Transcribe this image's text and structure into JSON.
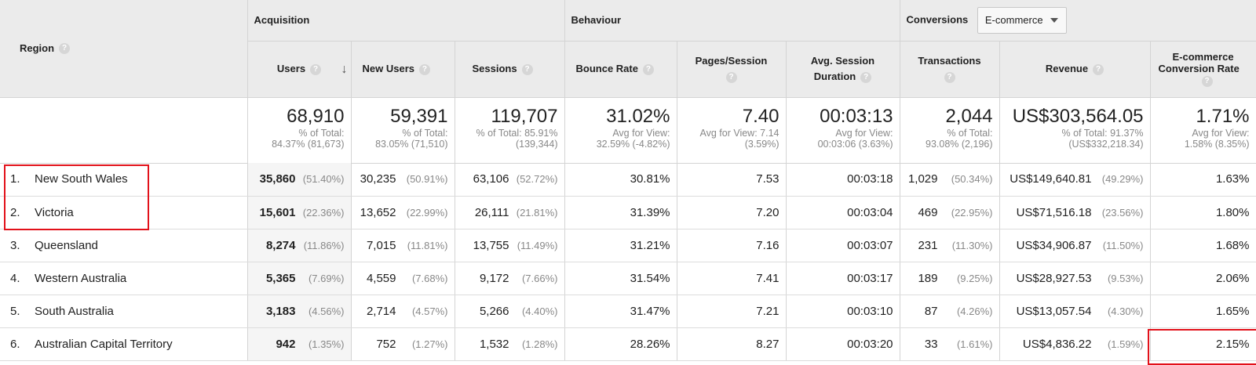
{
  "header": {
    "region_label": "Region",
    "group_acquisition": "Acquisition",
    "group_behaviour": "Behaviour",
    "group_conversions": "Conversions",
    "conversions_dropdown_value": "E-commerce",
    "help_glyph": "?",
    "sort_glyph": "↓",
    "col_users": "Users",
    "col_new_users": "New Users",
    "col_sessions": "Sessions",
    "col_bounce_rate": "Bounce Rate",
    "col_pages_session": "Pages/Session",
    "col_avg_session_line1": "Avg. Session",
    "col_avg_session_line2": "Duration",
    "col_transactions": "Transactions",
    "col_revenue": "Revenue",
    "col_ecr_line1": "E-commerce",
    "col_ecr_line2": "Conversion Rate"
  },
  "totals": {
    "users": {
      "value": "68,910",
      "sub1": "% of Total:",
      "sub2": "84.37% (81,673)"
    },
    "new_users": {
      "value": "59,391",
      "sub1": "% of Total:",
      "sub2": "83.05% (71,510)"
    },
    "sessions": {
      "value": "119,707",
      "sub1": "% of Total: 85.91%",
      "sub2": "(139,344)"
    },
    "bounce_rate": {
      "value": "31.02%",
      "sub1": "Avg for View:",
      "sub2": "32.59% (-4.82%)"
    },
    "pages_session": {
      "value": "7.40",
      "sub1": "Avg for View: 7.14",
      "sub2": "(3.59%)"
    },
    "avg_duration": {
      "value": "00:03:13",
      "sub1": "Avg for View:",
      "sub2": "00:03:06 (3.63%)"
    },
    "transactions": {
      "value": "2,044",
      "sub1": "% of Total:",
      "sub2": "93.08% (2,196)"
    },
    "revenue": {
      "value": "US$303,564.05",
      "sub1": "% of Total: 91.37%",
      "sub2": "(US$332,218.34)"
    },
    "ecr": {
      "value": "1.71%",
      "sub1": "Avg for View:",
      "sub2": "1.58% (8.35%)"
    }
  },
  "rows": [
    {
      "idx": "1.",
      "region": "New South Wales",
      "users": "35,860",
      "users_pct": "(51.40%)",
      "new_users": "30,235",
      "new_users_pct": "(50.91%)",
      "sessions": "63,106",
      "sessions_pct": "(52.72%)",
      "bounce": "30.81%",
      "pages": "7.53",
      "duration": "00:03:18",
      "transactions": "1,029",
      "transactions_pct": "(50.34%)",
      "revenue": "US$149,640.81",
      "revenue_pct": "(49.29%)",
      "ecr": "1.63%"
    },
    {
      "idx": "2.",
      "region": "Victoria",
      "users": "15,601",
      "users_pct": "(22.36%)",
      "new_users": "13,652",
      "new_users_pct": "(22.99%)",
      "sessions": "26,111",
      "sessions_pct": "(21.81%)",
      "bounce": "31.39%",
      "pages": "7.20",
      "duration": "00:03:04",
      "transactions": "469",
      "transactions_pct": "(22.95%)",
      "revenue": "US$71,516.18",
      "revenue_pct": "(23.56%)",
      "ecr": "1.80%"
    },
    {
      "idx": "3.",
      "region": "Queensland",
      "users": "8,274",
      "users_pct": "(11.86%)",
      "new_users": "7,015",
      "new_users_pct": "(11.81%)",
      "sessions": "13,755",
      "sessions_pct": "(11.49%)",
      "bounce": "31.21%",
      "pages": "7.16",
      "duration": "00:03:07",
      "transactions": "231",
      "transactions_pct": "(11.30%)",
      "revenue": "US$34,906.87",
      "revenue_pct": "(11.50%)",
      "ecr": "1.68%"
    },
    {
      "idx": "4.",
      "region": "Western Australia",
      "users": "5,365",
      "users_pct": "(7.69%)",
      "new_users": "4,559",
      "new_users_pct": "(7.68%)",
      "sessions": "9,172",
      "sessions_pct": "(7.66%)",
      "bounce": "31.54%",
      "pages": "7.41",
      "duration": "00:03:17",
      "transactions": "189",
      "transactions_pct": "(9.25%)",
      "revenue": "US$28,927.53",
      "revenue_pct": "(9.53%)",
      "ecr": "2.06%"
    },
    {
      "idx": "5.",
      "region": "South Australia",
      "users": "3,183",
      "users_pct": "(4.56%)",
      "new_users": "2,714",
      "new_users_pct": "(4.57%)",
      "sessions": "5,266",
      "sessions_pct": "(4.40%)",
      "bounce": "31.47%",
      "pages": "7.21",
      "duration": "00:03:10",
      "transactions": "87",
      "transactions_pct": "(4.26%)",
      "revenue": "US$13,057.54",
      "revenue_pct": "(4.30%)",
      "ecr": "1.65%"
    },
    {
      "idx": "6.",
      "region": "Australian Capital Territory",
      "users": "942",
      "users_pct": "(1.35%)",
      "new_users": "752",
      "new_users_pct": "(1.27%)",
      "sessions": "1,532",
      "sessions_pct": "(1.28%)",
      "bounce": "28.26%",
      "pages": "8.27",
      "duration": "00:03:20",
      "transactions": "33",
      "transactions_pct": "(1.61%)",
      "revenue": "US$4,836.22",
      "revenue_pct": "(1.59%)",
      "ecr": "2.15%"
    }
  ],
  "colors": {
    "highlight": "#e2111a",
    "header_bg": "#ebebeb",
    "pct_gray": "#888888"
  }
}
